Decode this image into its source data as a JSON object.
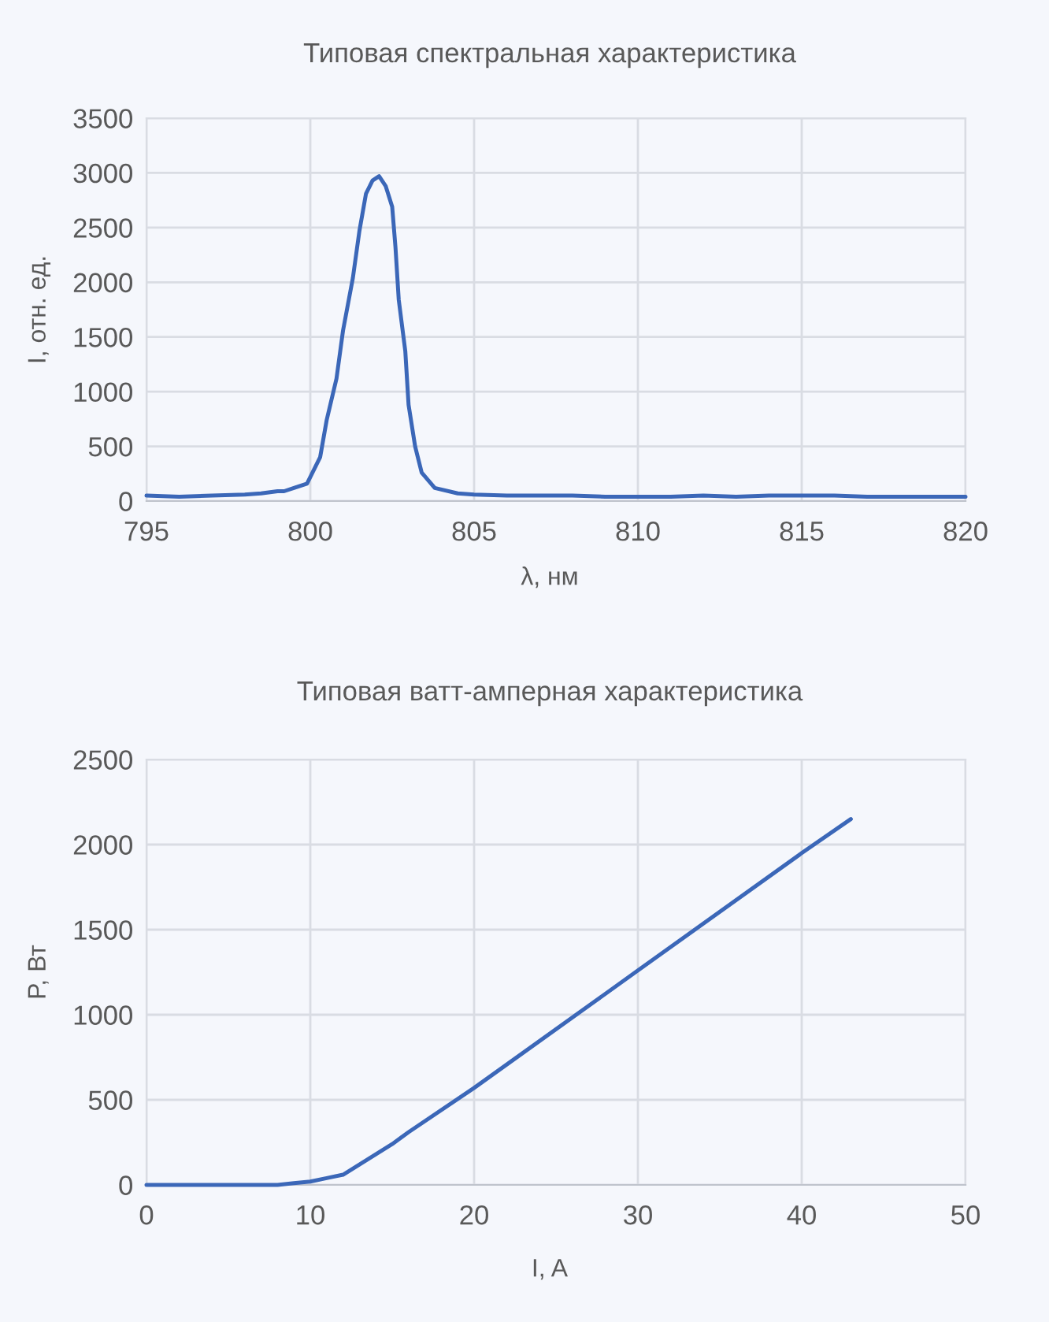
{
  "chart_data": [
    {
      "type": "line",
      "title": "Типовая спектральная характеристика",
      "xlabel": "λ, нм",
      "ylabel": "I, отн. ед.",
      "series": [
        {
          "color": "#3b67b8",
          "x": [
            795,
            796,
            797,
            798,
            798.5,
            799,
            799.2,
            799.5,
            799.9,
            800.3,
            800.5,
            800.8,
            801,
            801.3,
            801.5,
            801.7,
            801.9,
            802.1,
            802.3,
            802.5,
            802.6,
            802.7,
            802.9,
            803,
            803.2,
            803.4,
            803.8,
            804.5,
            805,
            806,
            807,
            808,
            809,
            810,
            811,
            812,
            813,
            814,
            815,
            816,
            817,
            818,
            819,
            820
          ],
          "values": [
            50,
            40,
            50,
            60,
            70,
            90,
            90,
            120,
            160,
            400,
            740,
            1120,
            1560,
            2040,
            2470,
            2810,
            2930,
            2970,
            2880,
            2690,
            2320,
            1840,
            1370,
            880,
            500,
            260,
            120,
            70,
            60,
            50,
            50,
            50,
            40,
            40,
            40,
            50,
            40,
            50,
            50,
            50,
            40,
            40,
            40,
            40
          ]
        }
      ],
      "xlim": [
        795,
        820
      ],
      "xticks": [
        795,
        800,
        805,
        810,
        815,
        820
      ],
      "ylim": [
        0,
        3500
      ],
      "yticks": [
        0,
        500,
        1000,
        1500,
        2000,
        2500,
        3000,
        3500
      ],
      "grid": true
    },
    {
      "type": "line",
      "title": "Типовая ватт-амперная характеристика",
      "xlabel": "I, A",
      "ylabel": "P, Вт",
      "series": [
        {
          "color": "#3b67b8",
          "x": [
            0,
            5,
            8,
            9,
            10,
            11,
            12,
            13,
            14,
            15,
            16,
            20,
            30,
            40,
            43
          ],
          "values": [
            0,
            0,
            0,
            10,
            20,
            40,
            60,
            120,
            180,
            240,
            310,
            570,
            1260,
            1950,
            2150
          ]
        }
      ],
      "xlim": [
        0,
        50
      ],
      "xticks": [
        0,
        10,
        20,
        30,
        40,
        50
      ],
      "ylim": [
        0,
        2500
      ],
      "yticks": [
        0,
        500,
        1000,
        1500,
        2000,
        2500
      ],
      "grid": true
    }
  ]
}
